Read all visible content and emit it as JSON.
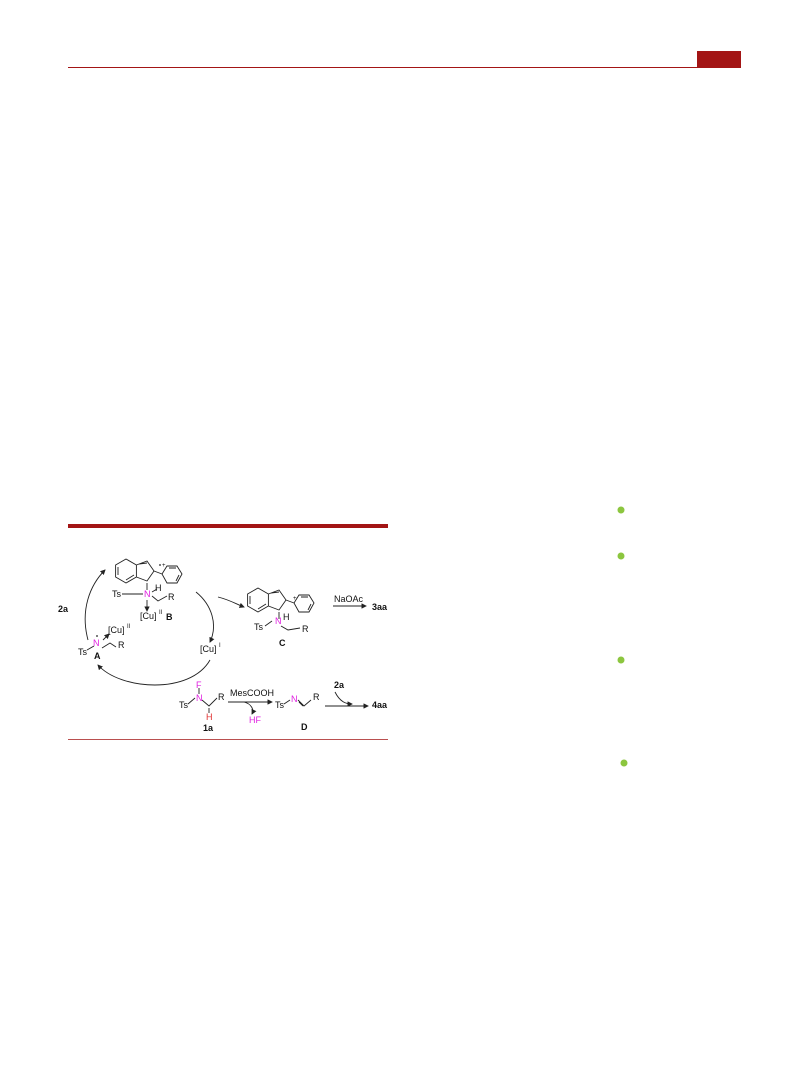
{
  "scheme": {
    "labels": [
      "2a",
      "Ts",
      "N",
      "H",
      "R",
      "+",
      "[Cu]",
      "II",
      "B",
      "[Cu]",
      "II",
      "N",
      "Ts",
      "R",
      "A",
      "[Cu]",
      "I",
      "Ts",
      "N",
      "H",
      "R",
      "+",
      "C",
      "NaOAc",
      "3aa",
      "F",
      "N",
      "Ts",
      "R",
      "H",
      "1a",
      "MesCOOH",
      "HF",
      "Ts",
      "N",
      "R",
      "D",
      "2a",
      "4aa"
    ]
  }
}
